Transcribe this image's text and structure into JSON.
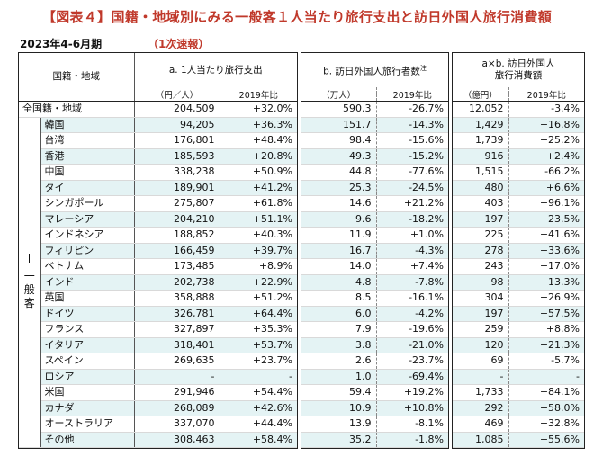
{
  "title": "【図表４】国籍・地域別にみる一般客１人当たり旅行支出と訪日外国人旅行消費額",
  "period": "2023年4-6月期",
  "badge": "（1次速報）",
  "headers": {
    "region": "国籍・地域",
    "group": "一般客",
    "a_title": "a. 1人当たり旅行支出",
    "a_unit": "（円／人）",
    "b_title": "b. 訪日外国人旅行者数",
    "b_note": "注",
    "b_unit": "（万人）",
    "c_title_line1": "a×b. 訪日外国人",
    "c_title_line2": "旅行消費額",
    "c_unit": "（億円）",
    "yoy": "2019年比"
  },
  "rows": [
    {
      "name": "全国籍・地域",
      "a": "204,509",
      "a_yoy": "+32.0%",
      "b": "590.3",
      "b_yoy": "-26.7%",
      "c": "12,052",
      "c_yoy": "-3.4%"
    },
    {
      "name": "韓国",
      "a": "94,205",
      "a_yoy": "+36.3%",
      "b": "151.7",
      "b_yoy": "-14.3%",
      "c": "1,429",
      "c_yoy": "+16.8%"
    },
    {
      "name": "台湾",
      "a": "176,801",
      "a_yoy": "+48.4%",
      "b": "98.4",
      "b_yoy": "-15.6%",
      "c": "1,739",
      "c_yoy": "+25.2%"
    },
    {
      "name": "香港",
      "a": "185,593",
      "a_yoy": "+20.8%",
      "b": "49.3",
      "b_yoy": "-15.2%",
      "c": "916",
      "c_yoy": "+2.4%"
    },
    {
      "name": "中国",
      "a": "338,238",
      "a_yoy": "+50.9%",
      "b": "44.8",
      "b_yoy": "-77.6%",
      "c": "1,515",
      "c_yoy": "-66.2%"
    },
    {
      "name": "タイ",
      "a": "189,901",
      "a_yoy": "+41.2%",
      "b": "25.3",
      "b_yoy": "-24.5%",
      "c": "480",
      "c_yoy": "+6.6%"
    },
    {
      "name": "シンガポール",
      "a": "275,807",
      "a_yoy": "+61.8%",
      "b": "14.6",
      "b_yoy": "+21.2%",
      "c": "403",
      "c_yoy": "+96.1%"
    },
    {
      "name": "マレーシア",
      "a": "204,210",
      "a_yoy": "+51.1%",
      "b": "9.6",
      "b_yoy": "-18.2%",
      "c": "197",
      "c_yoy": "+23.5%"
    },
    {
      "name": "インドネシア",
      "a": "188,852",
      "a_yoy": "+40.3%",
      "b": "11.9",
      "b_yoy": "+1.0%",
      "c": "225",
      "c_yoy": "+41.6%"
    },
    {
      "name": "フィリピン",
      "a": "166,459",
      "a_yoy": "+39.7%",
      "b": "16.7",
      "b_yoy": "-4.3%",
      "c": "278",
      "c_yoy": "+33.6%"
    },
    {
      "name": "ベトナム",
      "a": "173,485",
      "a_yoy": "+8.9%",
      "b": "14.0",
      "b_yoy": "+7.4%",
      "c": "243",
      "c_yoy": "+17.0%"
    },
    {
      "name": "インド",
      "a": "202,738",
      "a_yoy": "+22.9%",
      "b": "4.8",
      "b_yoy": "-7.8%",
      "c": "98",
      "c_yoy": "+13.3%"
    },
    {
      "name": "英国",
      "a": "358,888",
      "a_yoy": "+51.2%",
      "b": "8.5",
      "b_yoy": "-16.1%",
      "c": "304",
      "c_yoy": "+26.9%"
    },
    {
      "name": "ドイツ",
      "a": "326,781",
      "a_yoy": "+64.4%",
      "b": "6.0",
      "b_yoy": "-4.2%",
      "c": "197",
      "c_yoy": "+57.5%"
    },
    {
      "name": "フランス",
      "a": "327,897",
      "a_yoy": "+35.3%",
      "b": "7.9",
      "b_yoy": "-19.6%",
      "c": "259",
      "c_yoy": "+8.8%"
    },
    {
      "name": "イタリア",
      "a": "318,401",
      "a_yoy": "+53.7%",
      "b": "3.8",
      "b_yoy": "-21.0%",
      "c": "120",
      "c_yoy": "+21.3%"
    },
    {
      "name": "スペイン",
      "a": "269,635",
      "a_yoy": "+23.7%",
      "b": "2.6",
      "b_yoy": "-23.7%",
      "c": "69",
      "c_yoy": "-5.7%"
    },
    {
      "name": "ロシア",
      "a": "-",
      "a_yoy": "-",
      "b": "1.0",
      "b_yoy": "-69.4%",
      "c": "-",
      "c_yoy": "-"
    },
    {
      "name": "米国",
      "a": "291,946",
      "a_yoy": "+54.4%",
      "b": "59.4",
      "b_yoy": "+19.2%",
      "c": "1,733",
      "c_yoy": "+84.1%"
    },
    {
      "name": "カナダ",
      "a": "268,089",
      "a_yoy": "+42.6%",
      "b": "10.9",
      "b_yoy": "+10.8%",
      "c": "292",
      "c_yoy": "+58.0%"
    },
    {
      "name": "オーストラリア",
      "a": "337,070",
      "a_yoy": "+44.4%",
      "b": "13.9",
      "b_yoy": "-8.1%",
      "c": "469",
      "c_yoy": "+32.8%"
    },
    {
      "name": "その他",
      "a": "308,463",
      "a_yoy": "+58.4%",
      "b": "35.2",
      "b_yoy": "-1.8%",
      "c": "1,085",
      "c_yoy": "+55.6%"
    }
  ]
}
